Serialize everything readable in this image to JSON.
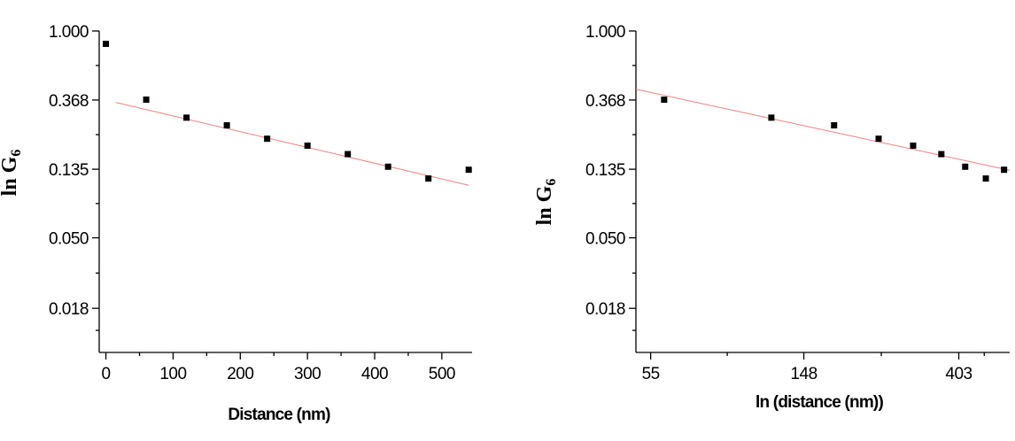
{
  "chart_data": [
    {
      "type": "scatter",
      "title": "",
      "xlabel": "Distance (nm)",
      "ylabel": "ln G",
      "ylabel_subscript": "6",
      "x_scale": "linear",
      "y_scale": "log",
      "xlim": [
        -10,
        545
      ],
      "ylim": [
        0.0095,
        1.0
      ],
      "x_ticks": [
        0,
        100,
        200,
        300,
        400,
        500
      ],
      "x_tick_labels": [
        "0",
        "100",
        "200",
        "300",
        "400",
        "500"
      ],
      "y_ticks": [
        1.0,
        0.368,
        0.135,
        0.05,
        0.018
      ],
      "y_tick_labels": [
        "1.000",
        "0.368",
        "0.135",
        "0.050",
        "0.018"
      ],
      "series": [
        {
          "x": [
            0,
            60,
            120,
            180,
            240,
            300,
            360,
            420,
            480,
            540
          ],
          "y": [
            0.83,
            0.37,
            0.285,
            0.255,
            0.21,
            0.19,
            0.168,
            0.14,
            0.118,
            0.134
          ]
        }
      ],
      "fit_line": {
        "x": [
          15,
          540
        ],
        "y": [
          0.355,
          0.107
        ],
        "color": "#f08080"
      },
      "marker_color": "#000000"
    },
    {
      "type": "scatter",
      "title": "",
      "xlabel": "ln (distance (nm))",
      "ylabel": "ln G",
      "ylabel_subscript": "6",
      "x_scale": "log",
      "y_scale": "log",
      "xlim": [
        50,
        560
      ],
      "ylim": [
        0.0095,
        1.0
      ],
      "x_ticks": [
        55,
        148,
        403
      ],
      "x_tick_labels": [
        "55",
        "148",
        "403"
      ],
      "y_ticks": [
        1.0,
        0.368,
        0.135,
        0.05,
        0.018
      ],
      "y_tick_labels": [
        "1.000",
        "0.368",
        "0.135",
        "0.050",
        "0.018"
      ],
      "series": [
        {
          "x": [
            60,
            120,
            180,
            240,
            300,
            360,
            420,
            480,
            540
          ],
          "y": [
            0.37,
            0.285,
            0.255,
            0.21,
            0.19,
            0.168,
            0.14,
            0.118,
            0.134
          ]
        }
      ],
      "fit_line": {
        "x": [
          50,
          560
        ],
        "y": [
          0.43,
          0.133
        ],
        "color": "#f08080"
      },
      "marker_color": "#000000"
    }
  ]
}
